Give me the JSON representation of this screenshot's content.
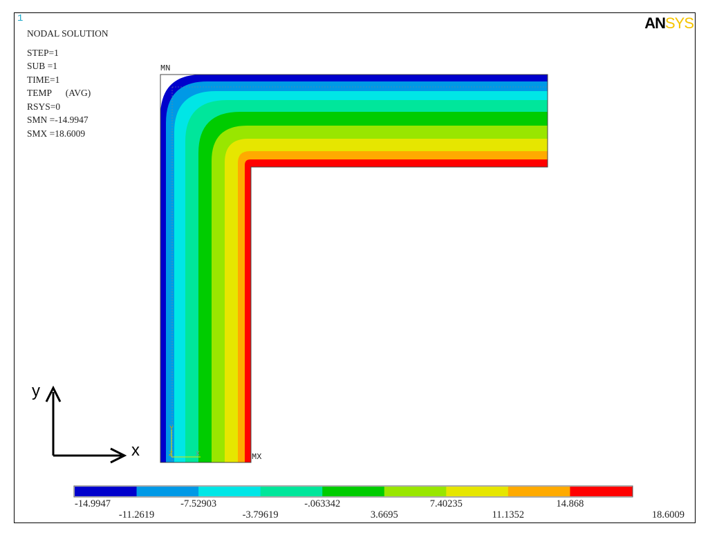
{
  "window_number": "1",
  "logo": {
    "part1": "AN",
    "part2": "SYS"
  },
  "info": {
    "title": "NODAL SOLUTION",
    "lines": [
      "STEP=1",
      "SUB =1",
      "TIME=1",
      "TEMP      (AVG)",
      "RSYS=0",
      "SMN =-14.9947",
      "SMX =18.6009"
    ]
  },
  "markers": {
    "min": "MN",
    "max": "MX"
  },
  "triad": {
    "y": "Y",
    "z": "Z",
    "x": "X"
  },
  "axes": {
    "y": "y",
    "x": "x"
  },
  "legend": {
    "colors": [
      "#0000cc",
      "#0099e6",
      "#00e6e6",
      "#00e69b",
      "#00cc00",
      "#99e600",
      "#e6e600",
      "#ffaa00",
      "#ff0000"
    ],
    "labels_top": [
      "-14.9947",
      "-7.52903",
      "-.063342",
      "7.40235",
      "14.868"
    ],
    "labels_bottom": [
      "-11.2619",
      "-3.79619",
      "3.6695",
      "11.1352",
      "18.6009"
    ]
  }
}
